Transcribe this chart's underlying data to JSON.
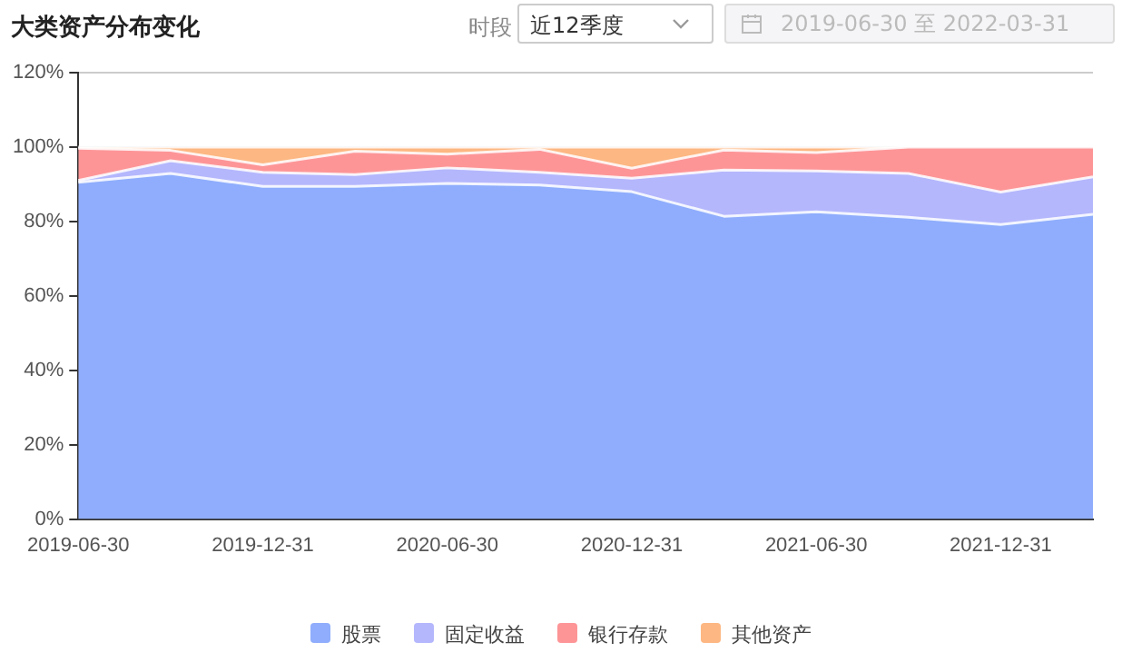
{
  "chart_data": {
    "type": "area",
    "stacked": true,
    "title": "大类资产分布变化",
    "annotations": [
      "时段",
      "近12季度",
      "2019-06-30 至 2022-03-31"
    ],
    "categories": [
      "2019-06-30",
      null,
      "2019-12-31",
      null,
      "2020-06-30",
      null,
      "2020-12-31",
      null,
      "2021-06-30",
      null,
      "2021-12-31",
      null
    ],
    "series": [
      {
        "name": "股票",
        "color": "#8fadfc",
        "values": [
          90.5,
          92.9,
          89.4,
          89.4,
          90.2,
          89.8,
          88.0,
          81.4,
          82.6,
          81.1,
          79.2,
          81.9
        ]
      },
      {
        "name": "固定收益",
        "color": "#b4b7fc",
        "values": [
          0.5,
          3.4,
          3.8,
          3.2,
          4.2,
          3.4,
          3.6,
          12.4,
          11.0,
          11.8,
          8.7,
          10.1
        ]
      },
      {
        "name": "银行存款",
        "color": "#fd9597",
        "values": [
          8.7,
          2.8,
          2.0,
          6.3,
          3.7,
          6.2,
          2.7,
          5.4,
          4.9,
          7.1,
          12.1,
          8.0
        ]
      },
      {
        "name": "其他资产",
        "color": "#fdb782",
        "values": [
          0.3,
          0.9,
          4.8,
          1.1,
          1.9,
          0.6,
          5.7,
          0.8,
          1.5,
          0,
          0,
          0
        ]
      }
    ],
    "ylim": [
      0,
      120
    ],
    "yticks": [
      {
        "value": 0,
        "label": "0%"
      },
      {
        "value": 20,
        "label": "20%"
      },
      {
        "value": 40,
        "label": "40%"
      },
      {
        "value": 60,
        "label": "60%"
      },
      {
        "value": 80,
        "label": "80%"
      },
      {
        "value": 100,
        "label": "100%"
      },
      {
        "value": 120,
        "label": "120%"
      }
    ],
    "grid": "y",
    "legend": "bottom"
  }
}
